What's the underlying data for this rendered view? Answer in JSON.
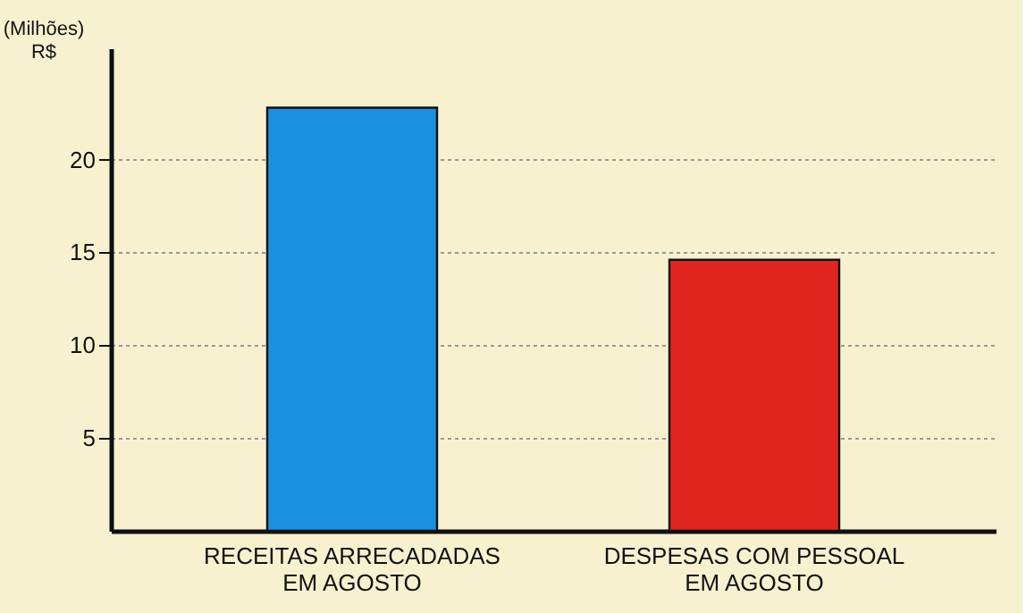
{
  "chart_data": {
    "type": "bar",
    "ylabel": "(Milhões)\nR$",
    "categories": [
      "RECEITAS ARRECADADAS\nEM AGOSTO",
      "DESPESAS COM PESSOAL\nEM AGOSTO"
    ],
    "colors": [
      "#1b8fe0",
      "#e0261f"
    ],
    "values": [
      22.8,
      14.6
    ],
    "ylim": [
      0,
      26
    ],
    "yticks": [
      5,
      10,
      15,
      20
    ],
    "grid": "y"
  }
}
